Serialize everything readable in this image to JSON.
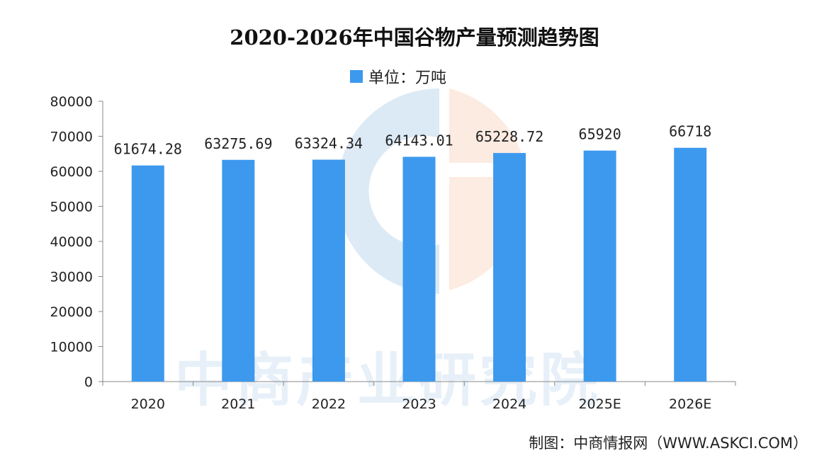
{
  "title": "2020-2026年中国谷物产量预测趋势图",
  "legend": {
    "label": "单位：万吨",
    "color": "#3d99ee"
  },
  "credit": "制图：中商情报网（WWW.ASKCI.COM）",
  "watermark": "中商产业研究院",
  "chart_data": {
    "type": "bar",
    "title": "2020-2026年中国谷物产量预测趋势图",
    "categories": [
      "2020",
      "2021",
      "2022",
      "2023",
      "2024",
      "2025E",
      "2026E"
    ],
    "series": [
      {
        "name": "单位：万吨",
        "values": [
          61674.28,
          63275.69,
          63324.34,
          64143.01,
          65228.72,
          65920,
          66718
        ]
      }
    ],
    "data_labels": [
      "61674.28",
      "63275.69",
      "63324.34",
      "64143.01",
      "65228.72",
      "65920",
      "66718"
    ],
    "ylim": [
      0,
      80000
    ],
    "yticks": [
      0,
      10000,
      20000,
      30000,
      40000,
      50000,
      60000,
      70000,
      80000
    ],
    "xlabel": "",
    "ylabel": "",
    "grid": false,
    "legend_position": "top"
  }
}
